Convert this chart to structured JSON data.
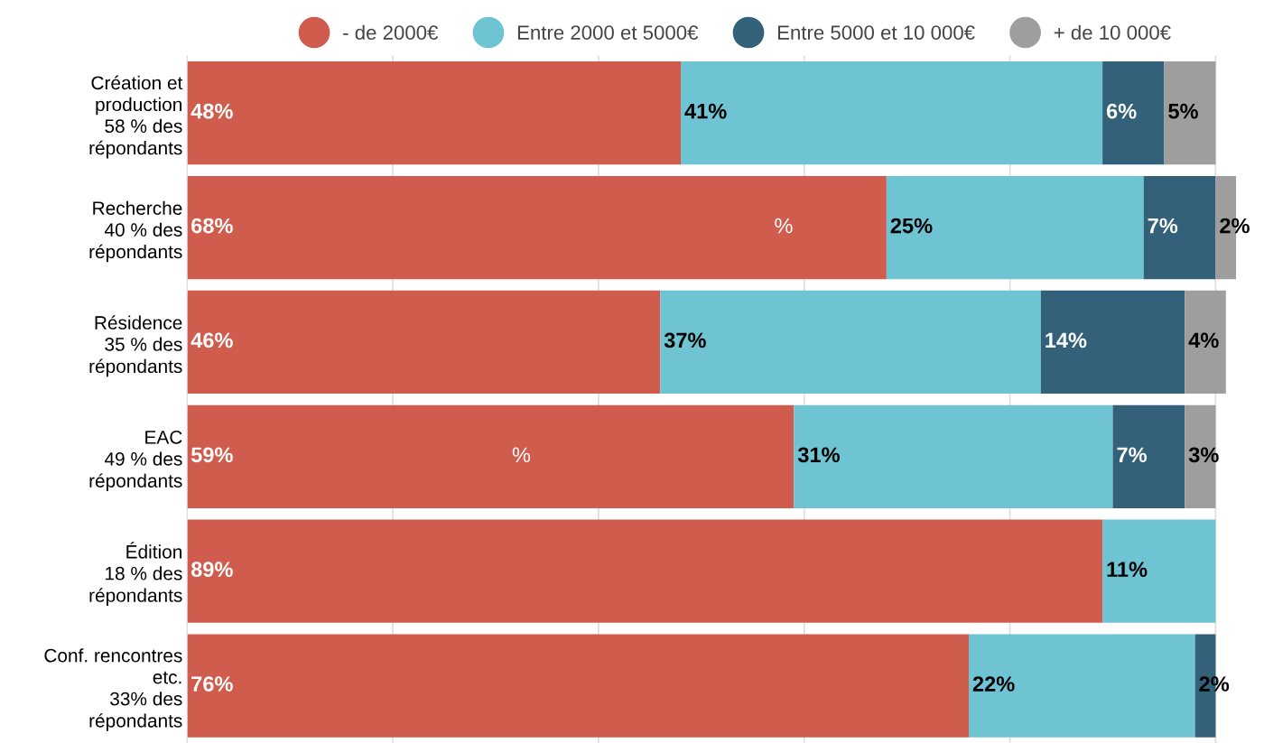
{
  "chart_data": {
    "type": "bar",
    "orientation": "horizontal",
    "stacked": true,
    "categories": [
      "Création et\nproduction\n58 % des\nrépondants",
      "Recherche\n40 % des\nrépondants",
      "Résidence\n35 % des\nrépondants",
      "EAC\n49 % des\nrépondants",
      "Édition\n18 % des\nrépondants",
      "Conf. rencontres\netc.\n33% des\nrépondants"
    ],
    "series": [
      {
        "name": "- de 2000€",
        "color": "#d05c4e",
        "values": [
          48,
          68,
          46,
          59,
          89,
          76
        ],
        "value_labels": [
          "48%",
          "68%",
          "46%",
          "59%",
          "89%",
          "76%"
        ]
      },
      {
        "name": "Entre 2000 et 5000€",
        "color": "#6ec4d2",
        "values": [
          41,
          25,
          37,
          31,
          11,
          22
        ],
        "value_labels": [
          "41%",
          "25%",
          "37%",
          "31%",
          "11%",
          "22%"
        ]
      },
      {
        "name": "Entre 5000 et 10 000€",
        "color": "#336179",
        "values": [
          6,
          7,
          14,
          7,
          null,
          2
        ],
        "value_labels": [
          "6%",
          "7%",
          "14%",
          "7%",
          null,
          "2%"
        ]
      },
      {
        "name": "+ de 10 000€",
        "color": "#9e9e9e",
        "values": [
          5,
          2,
          4,
          3,
          null,
          null
        ],
        "value_labels": [
          "5%",
          "2%",
          "4%",
          "3%",
          null,
          null
        ]
      }
    ],
    "tick_labels": "y",
    "grid": "x",
    "legend": "top",
    "marker": "circle",
    "annotations": [
      {
        "text": "%",
        "x": 58,
        "y": "Recherche\n40 % des\nrépondants"
      },
      {
        "text": "%",
        "x": 32.5,
        "y": "EAC\n49 % des\nrépondants"
      }
    ]
  }
}
